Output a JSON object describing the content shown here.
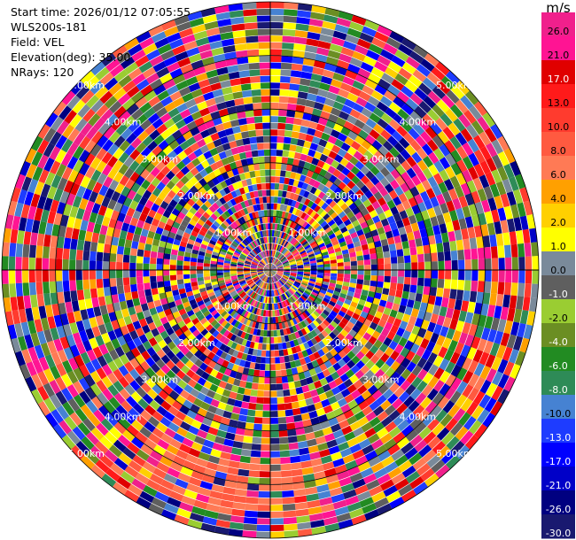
{
  "info": {
    "start_time": "Start time: 2026/01/12 07:05:55",
    "station": "WLS200s-181",
    "field": "Field: VEL",
    "elevation": "Elevation(deg): 35.00",
    "nrays": "NRays: 120"
  },
  "colorbar": {
    "unit": "m/s",
    "ticks": [
      "26.0",
      "21.0",
      "17.0",
      "13.0",
      "10.0",
      "8.0",
      "6.0",
      "4.0",
      "2.0",
      "1.0",
      "0.0",
      "-1.0",
      "-2.0",
      "-4.0",
      "-6.0",
      "-8.0",
      "-10.0",
      "-13.0",
      "-17.0",
      "-21.0",
      "-26.0",
      "-30.0"
    ],
    "colors": [
      "#f0208c",
      "#ff1493",
      "#e00000",
      "#ff1a1a",
      "#ff3b2e",
      "#ff5a40",
      "#ff7a55",
      "#ffa000",
      "#ffd000",
      "#ffff00",
      "#7a8a9a",
      "#5f5f5f",
      "#9acd32",
      "#6b8e23",
      "#228b22",
      "#2e8b57",
      "#4682d2",
      "#1e3cff",
      "#0000ff",
      "#0000c8",
      "#000080",
      "#191970"
    ]
  },
  "range_rings": {
    "labels": [
      "5.00km",
      "4.00km",
      "3.00km",
      "2.00km",
      "1.00km"
    ]
  },
  "chart_data": {
    "type": "heatmap",
    "title": "",
    "field": "VEL",
    "unit": "m/s",
    "elevation_deg": 35.0,
    "n_rays": 120,
    "range_km": [
      0,
      5.0
    ],
    "range_rings_km": [
      1.0,
      2.0,
      3.0,
      4.0,
      5.0
    ],
    "colorbar_levels": [
      -30.0,
      -26.0,
      -21.0,
      -17.0,
      -13.0,
      -10.0,
      -8.0,
      -6.0,
      -4.0,
      -2.0,
      -1.0,
      0.0,
      1.0,
      2.0,
      4.0,
      6.0,
      8.0,
      10.0,
      13.0,
      17.0,
      21.0,
      26.0
    ],
    "notes_visible": "Polar PPI display; values appear noisy across all ranges"
  }
}
